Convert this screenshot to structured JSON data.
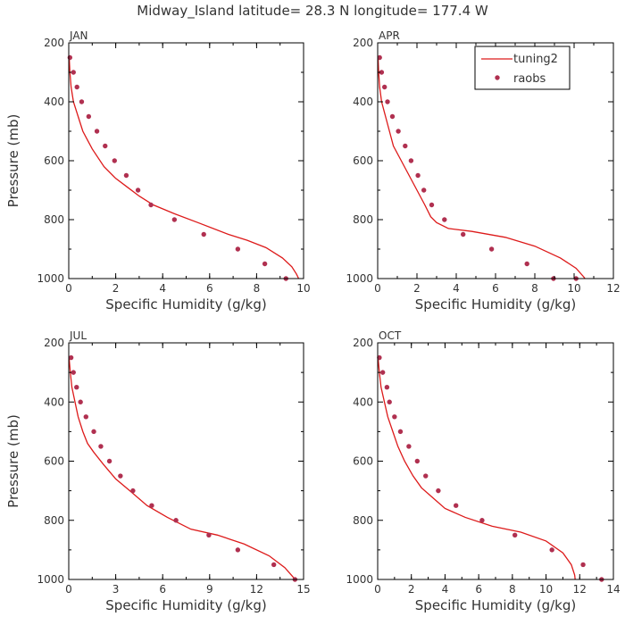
{
  "figure": {
    "title": "Midway_Island  latitude= 28.3 N longitude= 177.4 W",
    "model_color": "#dd1a1a",
    "obs_color": "#b03050",
    "legend": {
      "model_label": "tuning2",
      "obs_label": "raobs",
      "location": "top-right of APR panel"
    }
  },
  "chart_data": [
    {
      "type": "line",
      "panel": "JAN",
      "title": "JAN",
      "xlabel": "Specific Humidity (g/kg)",
      "ylabel": "Pressure (mb)",
      "xlim": [
        0,
        10
      ],
      "ylim": [
        1000,
        200
      ],
      "xticks": [
        0,
        2,
        4,
        6,
        8,
        10
      ],
      "yticks": [
        200,
        400,
        600,
        800,
        1000
      ],
      "series": [
        {
          "name": "tuning2",
          "style": "line",
          "x": [
            0.02,
            0.05,
            0.1,
            0.2,
            0.4,
            0.6,
            0.8,
            1.0,
            1.5,
            2.0,
            2.5,
            3.0,
            3.6,
            4.5,
            5.5,
            6.8,
            7.6,
            8.4,
            9.1,
            9.5,
            9.7,
            9.85
          ],
          "y": [
            250,
            300,
            350,
            400,
            450,
            500,
            530,
            560,
            620,
            660,
            690,
            720,
            750,
            780,
            810,
            850,
            870,
            895,
            930,
            960,
            985,
            1010
          ]
        },
        {
          "name": "raobs",
          "style": "markers",
          "x": [
            0.05,
            0.2,
            0.35,
            0.55,
            0.85,
            1.2,
            1.55,
            1.95,
            2.45,
            2.95,
            3.5,
            4.5,
            5.75,
            7.2,
            8.35,
            9.25
          ],
          "y": [
            250,
            300,
            350,
            400,
            450,
            500,
            550,
            600,
            650,
            700,
            750,
            800,
            850,
            900,
            950,
            1000
          ]
        }
      ]
    },
    {
      "type": "line",
      "panel": "APR",
      "title": "APR",
      "xlabel": "Specific Humidity (g/kg)",
      "ylabel": "",
      "xlim": [
        0,
        12
      ],
      "ylim": [
        1000,
        200
      ],
      "xticks": [
        0,
        2,
        4,
        6,
        8,
        10,
        12
      ],
      "yticks": [
        200,
        400,
        600,
        800,
        1000
      ],
      "series": [
        {
          "name": "tuning2",
          "style": "line",
          "x": [
            0.02,
            0.05,
            0.1,
            0.2,
            0.4,
            0.6,
            0.8,
            1.2,
            1.6,
            2.0,
            2.4,
            2.7,
            3.0,
            3.6,
            4.8,
            6.5,
            8.0,
            9.3,
            10.1,
            10.5,
            10.75
          ],
          "y": [
            250,
            300,
            350,
            400,
            450,
            500,
            550,
            600,
            650,
            700,
            750,
            790,
            810,
            830,
            840,
            860,
            890,
            930,
            965,
            995,
            1020
          ]
        },
        {
          "name": "raobs",
          "style": "markers",
          "x": [
            0.1,
            0.2,
            0.35,
            0.5,
            0.75,
            1.05,
            1.4,
            1.7,
            2.05,
            2.35,
            2.75,
            3.4,
            4.35,
            5.8,
            7.6,
            8.95,
            10.1
          ],
          "y": [
            250,
            300,
            350,
            400,
            450,
            500,
            550,
            600,
            650,
            700,
            750,
            800,
            850,
            900,
            950,
            1000,
            1000
          ]
        }
      ]
    },
    {
      "type": "line",
      "panel": "JUL",
      "title": "JUL",
      "xlabel": "Specific Humidity (g/kg)",
      "ylabel": "Pressure (mb)",
      "xlim": [
        0,
        15
      ],
      "ylim": [
        1000,
        200
      ],
      "xticks": [
        0,
        3,
        6,
        9,
        12,
        15
      ],
      "yticks": [
        200,
        400,
        600,
        800,
        1000
      ],
      "series": [
        {
          "name": "tuning2",
          "style": "line",
          "x": [
            0.02,
            0.1,
            0.2,
            0.4,
            0.6,
            0.9,
            1.2,
            1.6,
            2.2,
            3.0,
            3.9,
            5.0,
            6.3,
            7.8,
            9.5,
            11.2,
            12.8,
            13.8,
            14.3,
            14.6
          ],
          "y": [
            250,
            300,
            350,
            400,
            450,
            500,
            540,
            570,
            610,
            660,
            700,
            750,
            790,
            830,
            850,
            880,
            920,
            960,
            990,
            1010
          ]
        },
        {
          "name": "raobs",
          "style": "markers",
          "x": [
            0.15,
            0.3,
            0.5,
            0.75,
            1.1,
            1.6,
            2.05,
            2.6,
            3.3,
            4.1,
            5.3,
            6.85,
            8.95,
            10.8,
            13.1,
            14.45
          ],
          "y": [
            250,
            300,
            350,
            400,
            450,
            500,
            550,
            600,
            650,
            700,
            750,
            800,
            850,
            900,
            950,
            1000
          ]
        }
      ]
    },
    {
      "type": "line",
      "panel": "OCT",
      "title": "OCT",
      "xlabel": "Specific Humidity (g/kg)",
      "ylabel": "",
      "xlim": [
        0,
        14
      ],
      "ylim": [
        1000,
        200
      ],
      "xticks": [
        0,
        2,
        4,
        6,
        8,
        10,
        12,
        14
      ],
      "yticks": [
        200,
        400,
        600,
        800,
        1000
      ],
      "series": [
        {
          "name": "tuning2",
          "style": "line",
          "x": [
            0.02,
            0.1,
            0.2,
            0.4,
            0.6,
            0.9,
            1.2,
            1.6,
            2.1,
            2.6,
            3.2,
            4.0,
            5.2,
            6.8,
            8.5,
            10.0,
            11.0,
            11.5,
            11.7,
            11.75
          ],
          "y": [
            250,
            300,
            350,
            400,
            450,
            500,
            550,
            600,
            650,
            690,
            720,
            760,
            790,
            820,
            840,
            870,
            910,
            950,
            985,
            1010
          ]
        },
        {
          "name": "raobs",
          "style": "markers",
          "x": [
            0.1,
            0.3,
            0.55,
            0.7,
            1.0,
            1.35,
            1.85,
            2.35,
            2.85,
            3.6,
            4.65,
            6.2,
            8.15,
            10.35,
            12.2,
            13.3
          ],
          "y": [
            250,
            300,
            350,
            400,
            450,
            500,
            550,
            600,
            650,
            700,
            750,
            800,
            850,
            900,
            950,
            1000
          ]
        }
      ]
    }
  ]
}
